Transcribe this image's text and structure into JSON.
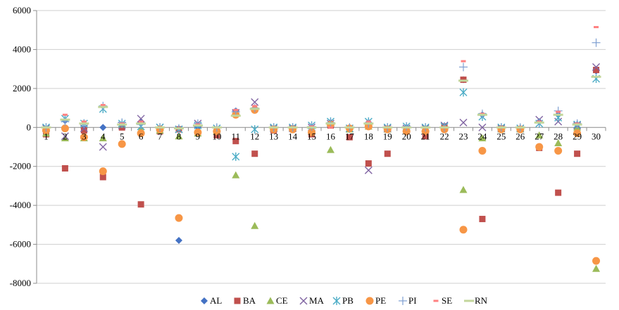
{
  "chart_data": {
    "type": "scatter",
    "title": "",
    "xlabel": "",
    "ylabel": "",
    "x": [
      1,
      2,
      3,
      4,
      5,
      6,
      7,
      8,
      9,
      10,
      11,
      12,
      13,
      14,
      15,
      16,
      17,
      18,
      19,
      20,
      21,
      22,
      23,
      24,
      25,
      26,
      27,
      28,
      29,
      30
    ],
    "x_tick_labels": [
      "1",
      "2",
      "3",
      "4",
      "5",
      "6",
      "7",
      "8",
      "9",
      "10",
      "11",
      "12",
      "13",
      "14",
      "15",
      "16",
      "17",
      "18",
      "19",
      "20",
      "21",
      "22",
      "23",
      "24",
      "25",
      "26",
      "27",
      "28",
      "29",
      "30"
    ],
    "ylim": [
      -8000,
      6000
    ],
    "y_ticks": [
      6000,
      4000,
      2000,
      0,
      -2000,
      -4000,
      -6000,
      -8000
    ],
    "y_tick_labels": [
      "6000",
      "4000",
      "2000",
      "0",
      "-2000",
      "-4000",
      "-6000",
      "-8000"
    ],
    "grid": "horizontal",
    "legend_position": "bottom",
    "series": [
      {
        "name": "AL",
        "marker": "diamond",
        "color": "#4472C4",
        "values": [
          -200,
          350,
          -50,
          0,
          150,
          250,
          -100,
          -5800,
          0,
          -100,
          850,
          950,
          -50,
          -50,
          0,
          250,
          -100,
          250,
          -50,
          0,
          -100,
          50,
          2450,
          650,
          -50,
          -50,
          300,
          650,
          150,
          2900
        ]
      },
      {
        "name": "BA",
        "marker": "square",
        "color": "#C0504D",
        "values": [
          -350,
          -2100,
          -150,
          -2550,
          0,
          -3950,
          -200,
          -100,
          -300,
          -400,
          -700,
          -1350,
          -150,
          -50,
          -350,
          100,
          -500,
          -1850,
          -1350,
          -100,
          -450,
          50,
          2450,
          -4700,
          -50,
          -100,
          -1050,
          -3350,
          -1350,
          2950
        ]
      },
      {
        "name": "CE",
        "marker": "triangle",
        "color": "#9BBB59",
        "values": [
          -300,
          -550,
          -550,
          -550,
          150,
          -100,
          -150,
          -450,
          -300,
          -200,
          -2450,
          -5050,
          -50,
          -50,
          -150,
          -1150,
          -100,
          50,
          -100,
          -50,
          -50,
          0,
          -3200,
          -550,
          -100,
          -100,
          -400,
          -800,
          0,
          -7250
        ]
      },
      {
        "name": "MA",
        "marker": "x",
        "color": "#8064A2",
        "values": [
          -50,
          -450,
          -50,
          -1000,
          100,
          450,
          0,
          -100,
          200,
          -50,
          750,
          1300,
          -50,
          -50,
          0,
          200,
          -50,
          -2200,
          -50,
          -50,
          -50,
          100,
          250,
          0,
          -50,
          -50,
          400,
          300,
          100,
          3100
        ]
      },
      {
        "name": "PB",
        "marker": "star",
        "color": "#4BACC6",
        "values": [
          0,
          450,
          200,
          950,
          200,
          50,
          0,
          -100,
          100,
          -50,
          -1500,
          -100,
          0,
          0,
          100,
          300,
          -50,
          300,
          0,
          50,
          0,
          50,
          1800,
          550,
          0,
          -50,
          200,
          500,
          150,
          2500
        ]
      },
      {
        "name": "PE",
        "marker": "circle",
        "color": "#F79646",
        "values": [
          -150,
          -50,
          -500,
          -2250,
          -850,
          -300,
          -100,
          -4650,
          -250,
          -200,
          650,
          900,
          -100,
          -100,
          -250,
          150,
          -50,
          50,
          -100,
          -200,
          -200,
          -100,
          -5250,
          -1200,
          -100,
          -100,
          -1000,
          -1200,
          -300,
          -6850
        ]
      },
      {
        "name": "PI",
        "marker": "plus",
        "color": "#7F9FD1",
        "values": [
          0,
          300,
          200,
          1100,
          250,
          150,
          0,
          -50,
          200,
          0,
          800,
          1000,
          0,
          0,
          50,
          250,
          0,
          200,
          0,
          50,
          0,
          0,
          3100,
          700,
          0,
          0,
          250,
          850,
          200,
          4350
        ]
      },
      {
        "name": "SE",
        "marker": "dash",
        "color": "#FF8080",
        "values": [
          0,
          650,
          300,
          1150,
          200,
          300,
          0,
          -50,
          150,
          0,
          900,
          1100,
          0,
          0,
          50,
          0,
          0,
          300,
          0,
          0,
          0,
          0,
          3400,
          700,
          0,
          0,
          300,
          800,
          200,
          5150
        ]
      },
      {
        "name": "RN",
        "marker": "line",
        "color": "#C3D69B",
        "values": [
          0,
          400,
          200,
          1050,
          150,
          200,
          0,
          -50,
          100,
          0,
          600,
          950,
          0,
          0,
          0,
          200,
          0,
          200,
          0,
          0,
          0,
          0,
          2400,
          650,
          0,
          0,
          250,
          650,
          150,
          2600
        ]
      }
    ]
  }
}
